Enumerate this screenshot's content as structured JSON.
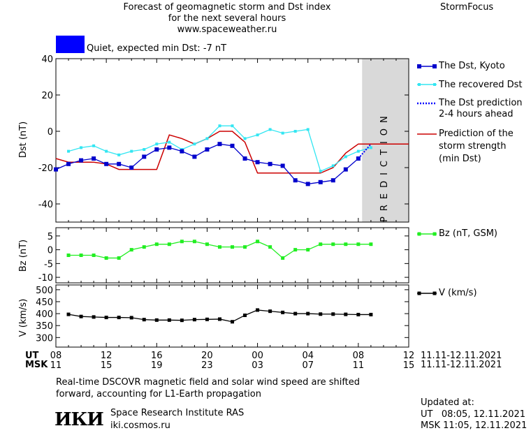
{
  "header": {
    "title_line1": "Forecast of geomagnetic storm and Dst index",
    "title_line2": "for the next several hours",
    "url": "www.spaceweather.ru",
    "brand": "StormFocus"
  },
  "status": {
    "text": "Quiet, expected min Dst: -7 nT",
    "color": "#0000ff"
  },
  "legend": {
    "dst_kyoto": "The Dst, Kyoto",
    "dst_recovered": "The recovered Dst",
    "dst_pred_line1": "The Dst prediction",
    "dst_pred_line2": "2-4 hours ahead",
    "storm_line1": "Prediction of the",
    "storm_line2": "storm strength",
    "storm_line3": "(min Dst)",
    "bz": "Bz (nT, GSM)",
    "v": "V (km/s)"
  },
  "prediction_label": "PREDICTION",
  "axes": {
    "ut_label": "UT",
    "msk_label": "MSK",
    "ut_ticks": [
      "08",
      "12",
      "16",
      "20",
      "00",
      "04",
      "08",
      "12"
    ],
    "msk_ticks": [
      "11",
      "15",
      "19",
      "23",
      "03",
      "07",
      "11",
      "15"
    ],
    "date_range_ut": "11.11-12.11.2021",
    "date_range_msk": "11.11-12.11.2021"
  },
  "footer": {
    "note_line1": "Real-time DSCOVR magnetic field and solar wind speed are shifted",
    "note_line2": "forward, accounting for L1-Earth propagation",
    "institute": "Space Research Institute RAS",
    "site": "iki.cosmos.ru",
    "logo_text": "ИКИ",
    "updated_label": "Updated at:",
    "updated_ut": "UT   08:05, 12.11.2021",
    "updated_msk": "MSK 11:05, 12.11.2021"
  },
  "colors": {
    "dst_kyoto": "#0000cc",
    "dst_recovered": "#33e6f2",
    "dst_prediction": "#0000ff",
    "storm": "#cc0000",
    "bz": "#22ee22",
    "v": "#000000",
    "prediction_band": "#d9d9d9"
  },
  "chart_data": [
    {
      "type": "line",
      "ylabel": "Dst (nT)",
      "ylim": [
        -50,
        40
      ],
      "yticks": [
        40,
        20,
        0,
        -20,
        -40
      ],
      "x_unit": "hours UT from 08:00 11.11.2021",
      "xlim": [
        0,
        28
      ],
      "prediction_region": [
        24.3,
        28
      ],
      "series": [
        {
          "name": "The Dst, Kyoto",
          "x": [
            0,
            1,
            2,
            3,
            4,
            5,
            6,
            7,
            8,
            9,
            10,
            11,
            12,
            13,
            14,
            15,
            16,
            17,
            18,
            19,
            20,
            21,
            22,
            23,
            24
          ],
          "y": [
            -21,
            -18,
            -16,
            -15,
            -18,
            -18,
            -20,
            -14,
            -10,
            -9,
            -11,
            -14,
            -10,
            -7,
            -8,
            -15,
            -17,
            -18,
            -19,
            -27,
            -29,
            -28,
            -27,
            -21,
            -15
          ]
        },
        {
          "name": "The recovered Dst",
          "x": [
            1,
            2,
            3,
            4,
            5,
            6,
            7,
            8,
            9,
            10,
            11,
            12,
            13,
            14,
            15,
            16,
            17,
            18,
            19,
            20,
            21,
            22,
            23,
            24,
            25
          ],
          "y": [
            -11,
            -9,
            -8,
            -11,
            -13,
            -11,
            -10,
            -7,
            -6,
            -10,
            -7,
            -4,
            3,
            3,
            -4,
            -2,
            1,
            -1,
            0,
            1,
            -22,
            -19,
            -14,
            -11,
            -9
          ]
        },
        {
          "name": "The Dst prediction 2-4 hours ahead",
          "x": [
            24,
            25
          ],
          "y": [
            -15,
            -7
          ]
        },
        {
          "name": "Prediction of the storm strength (min Dst)",
          "x": [
            -1,
            0,
            1,
            2,
            3,
            4,
            5,
            5.5,
            6,
            7,
            8,
            9,
            10,
            11,
            12,
            13,
            14,
            15,
            16,
            17,
            18,
            19,
            20,
            21,
            22,
            23,
            24,
            25,
            26,
            27,
            28
          ],
          "y": [
            -15,
            -15,
            -17,
            -17,
            -17,
            -18,
            -21,
            -21,
            -21,
            -21,
            -21,
            -2,
            -4,
            -7,
            -4,
            0,
            0,
            -6,
            -23,
            -23,
            -23,
            -23,
            -23,
            -23,
            -20,
            -12,
            -7,
            -7,
            -7,
            -7,
            -7
          ]
        }
      ]
    },
    {
      "type": "line",
      "ylabel": "Bz (nT)",
      "ylim": [
        -12,
        8
      ],
      "yticks": [
        5,
        0,
        -5,
        -10
      ],
      "series": [
        {
          "name": "Bz (nT, GSM)",
          "x": [
            1,
            2,
            3,
            4,
            5,
            6,
            7,
            8,
            9,
            10,
            11,
            12,
            13,
            14,
            15,
            16,
            17,
            18,
            19,
            20,
            21,
            22,
            23,
            24,
            25
          ],
          "y": [
            -2,
            -2,
            -2,
            -3,
            -3,
            0,
            1,
            2,
            2,
            3,
            3,
            2,
            1,
            1,
            1,
            3,
            1,
            -3,
            0,
            0,
            2,
            2,
            2,
            2,
            2
          ]
        }
      ]
    },
    {
      "type": "line",
      "ylabel": "V (km/s)",
      "ylim": [
        260,
        520
      ],
      "yticks": [
        500,
        450,
        400,
        350,
        300
      ],
      "series": [
        {
          "name": "V (km/s)",
          "x": [
            1,
            2,
            3,
            4,
            5,
            6,
            7,
            8,
            9,
            10,
            11,
            12,
            13,
            14,
            15,
            16,
            17,
            18,
            19,
            20,
            21,
            22,
            23,
            24,
            25
          ],
          "y": [
            397,
            388,
            386,
            384,
            384,
            383,
            375,
            373,
            373,
            372,
            375,
            376,
            377,
            366,
            393,
            415,
            410,
            405,
            400,
            400,
            398,
            398,
            397,
            396,
            396
          ]
        }
      ]
    }
  ]
}
